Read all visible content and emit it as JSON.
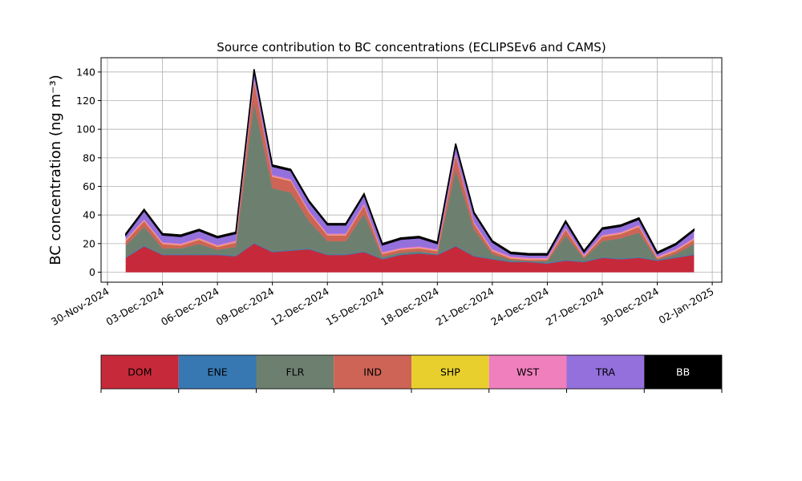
{
  "chart_data": {
    "type": "stacked_area",
    "title": "Source contribution to BC concentrations (ECLIPSEv6 and CAMS)",
    "y_label": "BC concentration (ng m⁻³)",
    "x": [
      "2024-12-01",
      "2024-12-02",
      "2024-12-03",
      "2024-12-04",
      "2024-12-05",
      "2024-12-06",
      "2024-12-07",
      "2024-12-08",
      "2024-12-09",
      "2024-12-10",
      "2024-12-11",
      "2024-12-12",
      "2024-12-13",
      "2024-12-14",
      "2024-12-15",
      "2024-12-16",
      "2024-12-17",
      "2024-12-18",
      "2024-12-19",
      "2024-12-20",
      "2024-12-21",
      "2024-12-22",
      "2024-12-23",
      "2024-12-24",
      "2024-12-25",
      "2024-12-26",
      "2024-12-27",
      "2024-12-28",
      "2024-12-29",
      "2024-12-30",
      "2024-12-31",
      "2025-01-01"
    ],
    "series": [
      {
        "name": "DOM",
        "color": "#c62a3a",
        "values": [
          10,
          18,
          12,
          12,
          12,
          12,
          11,
          20,
          14,
          15,
          16,
          12,
          12,
          14,
          9,
          12,
          13,
          12,
          18,
          11,
          9,
          7,
          7,
          6,
          8,
          7,
          10,
          9,
          10,
          8,
          10,
          12
        ]
      },
      {
        "name": "ENE",
        "color": "#3778b3",
        "values": [
          0.5,
          0.5,
          0.5,
          0.5,
          0.5,
          0.5,
          0.5,
          0.5,
          0.5,
          0.5,
          0.5,
          0.5,
          0.5,
          0.5,
          0.5,
          0.5,
          0.5,
          0.5,
          0.5,
          0.5,
          0.5,
          0.5,
          0.5,
          0.5,
          0.5,
          0.5,
          0.5,
          0.5,
          0.5,
          0.5,
          0.5,
          0.5
        ]
      },
      {
        "name": "FLR",
        "color": "#6d8070",
        "values": [
          8.2,
          13.2,
          4.2,
          4.2,
          7.2,
          3.2,
          6.2,
          98.2,
          44.2,
          40.2,
          19.2,
          9.2,
          9.2,
          26.2,
          1.2,
          1.2,
          1.2,
          0.2,
          53.2,
          18.2,
          3.2,
          1.2,
          0.2,
          1.2,
          17.2,
          2.2,
          11.2,
          14.2,
          17.2,
          0.2,
          2.2,
          7.2
        ]
      },
      {
        "name": "IND",
        "color": "#cd6455",
        "values": [
          3,
          4,
          3,
          2,
          3,
          2,
          3,
          15,
          8,
          8,
          6,
          4,
          4,
          6,
          2,
          2,
          2,
          2,
          10,
          4,
          2,
          1,
          1,
          1,
          4,
          1,
          3,
          3,
          4,
          1,
          2,
          3
        ]
      },
      {
        "name": "SHP",
        "color": "#e8cf2e",
        "values": [
          0.3,
          0.3,
          0.3,
          0.3,
          0.3,
          0.3,
          0.3,
          0.3,
          0.3,
          0.3,
          0.3,
          0.3,
          0.3,
          0.3,
          0.3,
          0.3,
          0.3,
          0.3,
          0.3,
          0.3,
          0.3,
          0.3,
          0.3,
          0.3,
          0.3,
          0.3,
          0.3,
          0.3,
          0.3,
          0.3,
          0.3,
          0.3
        ]
      },
      {
        "name": "WST",
        "color": "#f07fbd",
        "values": [
          1,
          1,
          1,
          1,
          1,
          1,
          1,
          1,
          1,
          1,
          1,
          1,
          1,
          1,
          1,
          1,
          1,
          1,
          1,
          1,
          1,
          1,
          1,
          1,
          1,
          1,
          1,
          1,
          1,
          1,
          1,
          1
        ]
      },
      {
        "name": "TRA",
        "color": "#9370dc",
        "values": [
          3,
          6,
          5,
          5,
          5,
          5,
          5,
          6,
          6,
          6,
          6,
          6,
          6,
          6,
          5,
          6,
          6,
          4,
          6,
          6,
          5,
          2,
          2,
          2,
          4,
          2,
          4,
          4,
          4,
          2,
          3,
          5
        ]
      },
      {
        "name": "BB",
        "color": "#000000",
        "values": [
          1,
          1,
          1,
          1,
          1,
          1,
          1,
          1,
          1,
          1,
          1,
          1,
          1,
          1,
          1,
          1,
          1,
          1,
          1,
          1,
          1,
          1,
          1,
          1,
          1,
          1,
          1,
          1,
          1,
          1,
          1,
          1
        ]
      }
    ],
    "xlim": [
      "2024-11-29T15:36:00Z",
      "2025-01-02T12:30:00Z"
    ],
    "xticks": [
      {
        "value": "2024-11-30",
        "label": "30-Nov-2024"
      },
      {
        "value": "2024-12-03",
        "label": "03-Dec-2024"
      },
      {
        "value": "2024-12-06",
        "label": "06-Dec-2024"
      },
      {
        "value": "2024-12-09",
        "label": "09-Dec-2024"
      },
      {
        "value": "2024-12-12",
        "label": "12-Dec-2024"
      },
      {
        "value": "2024-12-15",
        "label": "15-Dec-2024"
      },
      {
        "value": "2024-12-18",
        "label": "18-Dec-2024"
      },
      {
        "value": "2024-12-21",
        "label": "21-Dec-2024"
      },
      {
        "value": "2024-12-24",
        "label": "24-Dec-2024"
      },
      {
        "value": "2024-12-27",
        "label": "27-Dec-2024"
      },
      {
        "value": "2024-12-30",
        "label": "30-Dec-2024"
      },
      {
        "value": "2025-01-02",
        "label": "02-Jan-2025"
      }
    ],
    "ylim": [
      -7,
      150
    ],
    "yticks": [
      0,
      20,
      40,
      60,
      80,
      100,
      120,
      140
    ],
    "grid": true,
    "legend": "bottom"
  }
}
